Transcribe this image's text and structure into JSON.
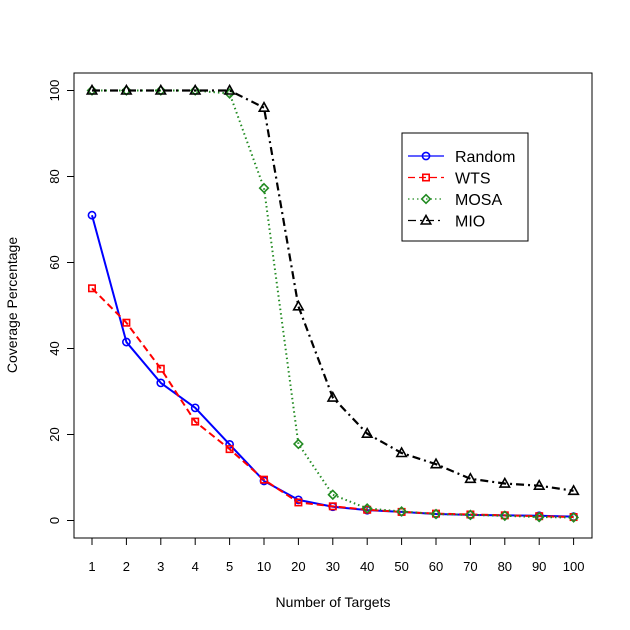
{
  "chart_data": {
    "type": "line",
    "title": "",
    "xlabel": "Number of Targets",
    "ylabel": "Coverage Percentage",
    "categories": [
      "1",
      "2",
      "3",
      "4",
      "5",
      "10",
      "20",
      "30",
      "40",
      "50",
      "60",
      "70",
      "80",
      "90",
      "100"
    ],
    "y_ticks": [
      0,
      20,
      40,
      60,
      80,
      100
    ],
    "ylim": [
      -4,
      104
    ],
    "grid": false,
    "legend_position": "top-right",
    "series": [
      {
        "name": "Random",
        "color": "#0000ff",
        "line_style": "solid",
        "marker": "circle",
        "values": [
          71,
          41.5,
          32,
          26.2,
          17.7,
          9.2,
          4.8,
          3.2,
          2.4,
          2.0,
          1.5,
          1.3,
          1.2,
          1.1,
          0.9
        ]
      },
      {
        "name": "WTS",
        "color": "#ff0000",
        "line_style": "dashed",
        "marker": "square",
        "values": [
          54,
          46,
          35.3,
          23,
          16.6,
          9.5,
          4.2,
          3.3,
          2.5,
          2.0,
          1.6,
          1.4,
          1.2,
          1.0,
          0.8
        ]
      },
      {
        "name": "MOSA",
        "color": "#228b22",
        "line_style": "dotted",
        "marker": "diamond",
        "values": [
          100,
          100,
          100,
          100,
          99.3,
          77.3,
          17.8,
          6.0,
          2.8,
          2.1,
          1.5,
          1.3,
          1.1,
          0.8,
          0.7
        ]
      },
      {
        "name": "MIO",
        "color": "#000000",
        "line_style": "dashdot",
        "marker": "triangle",
        "values": [
          100,
          100,
          100,
          100,
          100,
          96,
          49.8,
          28.6,
          20.2,
          15.7,
          13.1,
          9.7,
          8.6,
          8.1,
          6.9
        ]
      }
    ]
  }
}
